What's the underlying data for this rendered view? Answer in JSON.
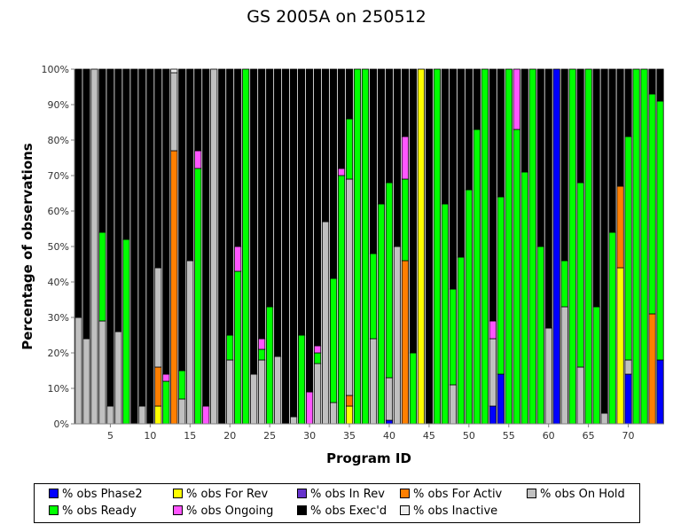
{
  "chart_data": {
    "type": "bar",
    "stacked": true,
    "title": "GS 2005A on 250512",
    "xlabel": "Program ID",
    "ylabel": "Percentage of observations",
    "ylim": [
      0,
      100
    ],
    "y_ticks": [
      "0%",
      "10%",
      "20%",
      "30%",
      "40%",
      "50%",
      "60%",
      "70%",
      "80%",
      "90%",
      "100%"
    ],
    "x_ticks": [
      5,
      10,
      15,
      20,
      25,
      30,
      35,
      40,
      45,
      50,
      55,
      60,
      65,
      70
    ],
    "legend_position": "bottom",
    "stack_order": [
      "phase2",
      "forrev",
      "inrev",
      "foractiv",
      "onhold",
      "ready",
      "ongoing",
      "execd",
      "inactive"
    ],
    "series": [
      {
        "key": "phase2",
        "name": "% obs Phase2",
        "color": "#0000ff"
      },
      {
        "key": "forrev",
        "name": "% obs For Rev",
        "color": "#ffff00"
      },
      {
        "key": "inrev",
        "name": "% obs In Rev",
        "color": "#6633cc"
      },
      {
        "key": "foractiv",
        "name": "% obs For Activ",
        "color": "#ff7f00"
      },
      {
        "key": "onhold",
        "name": "% obs On Hold",
        "color": "#c0c0c0"
      },
      {
        "key": "ready",
        "name": "% obs Ready",
        "color": "#00ff00"
      },
      {
        "key": "ongoing",
        "name": "% obs Ongoing",
        "color": "#ff55ff"
      },
      {
        "key": "execd",
        "name": "% obs Exec'd",
        "color": "#000000"
      },
      {
        "key": "inactive",
        "name": "% obs Inactive",
        "color": "#eeeeee"
      }
    ],
    "programs": [
      {
        "id": 1,
        "onhold": 30,
        "execd": 70
      },
      {
        "id": 2,
        "onhold": 24,
        "execd": 76
      },
      {
        "id": 3,
        "onhold": 100
      },
      {
        "id": 4,
        "onhold": 29,
        "ready": 25,
        "execd": 46
      },
      {
        "id": 5,
        "onhold": 5,
        "execd": 95
      },
      {
        "id": 6,
        "onhold": 26,
        "execd": 74
      },
      {
        "id": 7,
        "ready": 52,
        "execd": 48
      },
      {
        "id": 8,
        "execd": 100
      },
      {
        "id": 9,
        "onhold": 5,
        "execd": 95
      },
      {
        "id": 10,
        "execd": 100
      },
      {
        "id": 11,
        "forrev": 5,
        "foractiv": 11,
        "onhold": 28,
        "execd": 56
      },
      {
        "id": 12,
        "ready": 12,
        "ongoing": 2,
        "execd": 86
      },
      {
        "id": 13,
        "foractiv": 77,
        "onhold": 22,
        "inactive": 1
      },
      {
        "id": 14,
        "onhold": 7,
        "ready": 8,
        "execd": 85
      },
      {
        "id": 15,
        "onhold": 46,
        "execd": 54
      },
      {
        "id": 16,
        "ready": 72,
        "ongoing": 5,
        "execd": 23
      },
      {
        "id": 17,
        "ongoing": 5,
        "execd": 95
      },
      {
        "id": 18,
        "onhold": 100
      },
      {
        "id": 19,
        "execd": 100
      },
      {
        "id": 20,
        "onhold": 18,
        "ready": 7,
        "execd": 75
      },
      {
        "id": 21,
        "ready": 43,
        "ongoing": 7,
        "execd": 50
      },
      {
        "id": 22,
        "ready": 100
      },
      {
        "id": 23,
        "onhold": 14,
        "execd": 86
      },
      {
        "id": 24,
        "onhold": 18,
        "ready": 3,
        "ongoing": 3,
        "execd": 76
      },
      {
        "id": 25,
        "ready": 33,
        "execd": 67
      },
      {
        "id": 26,
        "onhold": 19,
        "execd": 81
      },
      {
        "id": 27,
        "execd": 100
      },
      {
        "id": 28,
        "onhold": 2,
        "execd": 98
      },
      {
        "id": 29,
        "ready": 25,
        "execd": 75
      },
      {
        "id": 30,
        "ongoing": 9,
        "execd": 91
      },
      {
        "id": 31,
        "onhold": 17,
        "ready": 3,
        "ongoing": 2,
        "execd": 78
      },
      {
        "id": 32,
        "onhold": 57,
        "execd": 43
      },
      {
        "id": 33,
        "onhold": 6,
        "ready": 35,
        "execd": 59
      },
      {
        "id": 34,
        "ready": 70,
        "ongoing": 2,
        "execd": 28
      },
      {
        "id": 35,
        "forrev": 5,
        "foractiv": 3,
        "onhold": 61,
        "ready": 17,
        "execd": 14
      },
      {
        "id": 36,
        "ready": 100
      },
      {
        "id": 37,
        "ready": 100
      },
      {
        "id": 38,
        "onhold": 24,
        "ready": 24,
        "execd": 52
      },
      {
        "id": 39,
        "ready": 62,
        "execd": 38
      },
      {
        "id": 40,
        "phase2": 1,
        "onhold": 12,
        "ready": 55,
        "execd": 32
      },
      {
        "id": 41,
        "onhold": 50,
        "execd": 50
      },
      {
        "id": 42,
        "foractiv": 46,
        "ready": 23,
        "ongoing": 12,
        "execd": 19
      },
      {
        "id": 43,
        "ready": 20,
        "execd": 80
      },
      {
        "id": 44,
        "forrev": 100
      },
      {
        "id": 45,
        "execd": 100
      },
      {
        "id": 46,
        "ready": 100
      },
      {
        "id": 47,
        "ready": 62,
        "execd": 38
      },
      {
        "id": 48,
        "onhold": 11,
        "ready": 27,
        "execd": 62
      },
      {
        "id": 49,
        "ready": 47,
        "execd": 53
      },
      {
        "id": 50,
        "ready": 66,
        "execd": 34
      },
      {
        "id": 51,
        "ready": 83,
        "execd": 17
      },
      {
        "id": 52,
        "ready": 100
      },
      {
        "id": 53,
        "phase2": 5,
        "onhold": 19,
        "ongoing": 5,
        "execd": 71
      },
      {
        "id": 54,
        "phase2": 14,
        "ready": 50,
        "execd": 36
      },
      {
        "id": 55,
        "ready": 100
      },
      {
        "id": 56,
        "ready": 83,
        "ongoing": 17
      },
      {
        "id": 57,
        "ready": 71,
        "execd": 29
      },
      {
        "id": 58,
        "ready": 100
      },
      {
        "id": 59,
        "ready": 50,
        "execd": 50
      },
      {
        "id": 60,
        "onhold": 27,
        "execd": 73
      },
      {
        "id": 61,
        "phase2": 100
      },
      {
        "id": 62,
        "onhold": 33,
        "ready": 13,
        "execd": 54
      },
      {
        "id": 63,
        "ready": 100
      },
      {
        "id": 64,
        "onhold": 16,
        "ready": 52,
        "execd": 32
      },
      {
        "id": 65,
        "ready": 100
      },
      {
        "id": 66,
        "ready": 33,
        "execd": 67
      },
      {
        "id": 67,
        "onhold": 3,
        "execd": 97
      },
      {
        "id": 68,
        "ready": 54,
        "execd": 46
      },
      {
        "id": 69,
        "forrev": 44,
        "foractiv": 23,
        "execd": 33
      },
      {
        "id": 70,
        "phase2": 14,
        "onhold": 4,
        "ready": 63,
        "execd": 19
      },
      {
        "id": 71,
        "ready": 100
      },
      {
        "id": 72,
        "ready": 100
      },
      {
        "id": 73,
        "foractiv": 31,
        "ready": 62,
        "execd": 7
      },
      {
        "id": 74,
        "phase2": 18,
        "ready": 73,
        "execd": 9
      }
    ]
  }
}
